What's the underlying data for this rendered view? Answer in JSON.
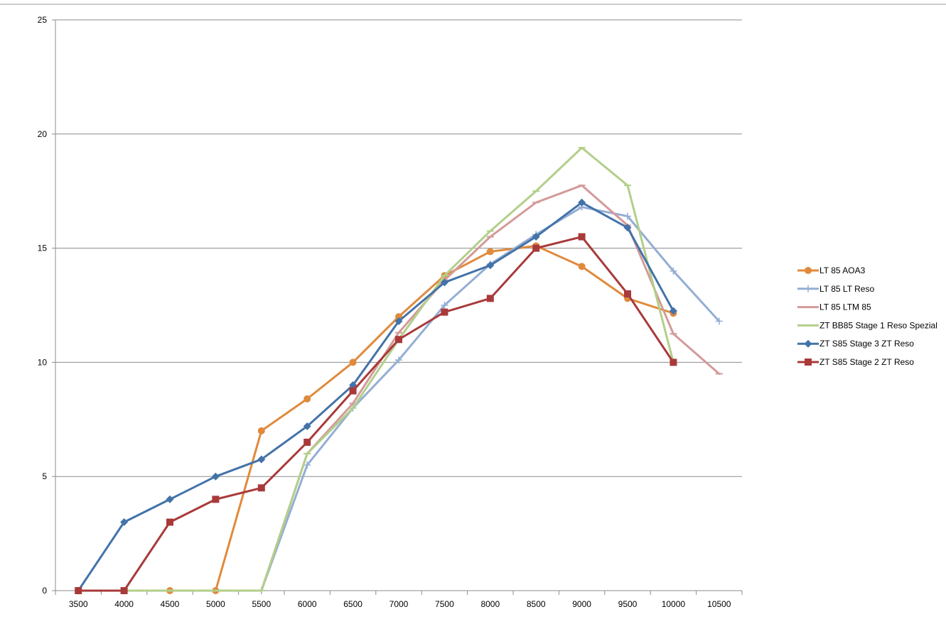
{
  "chart_data": {
    "type": "line",
    "title": "",
    "xlabel": "",
    "ylabel": "",
    "ylim": [
      0,
      25
    ],
    "yticks": [
      "0",
      "5",
      "10",
      "15",
      "20",
      "25"
    ],
    "categories": [
      "3500",
      "4000",
      "4500",
      "5000",
      "5500",
      "6000",
      "6500",
      "7000",
      "7500",
      "8000",
      "8500",
      "9000",
      "9500",
      "10000",
      "10500"
    ],
    "grid": "horizontal",
    "legend_position": "right",
    "series": [
      {
        "name": "LT 85 AOA3",
        "color": "#e08a3c",
        "marker": "circle",
        "values": [
          null,
          null,
          0,
          0,
          7,
          8.4,
          10,
          12,
          13.8,
          14.85,
          15.1,
          14.2,
          12.8,
          12.15,
          null
        ]
      },
      {
        "name": "LT 85 LT Reso",
        "color": "#94aed4",
        "marker": "plus",
        "values": [
          null,
          null,
          null,
          null,
          0,
          5.5,
          8,
          10.1,
          12.5,
          14.3,
          15.6,
          16.8,
          16.4,
          14,
          11.8
        ]
      },
      {
        "name": "LT 85 LTM 85",
        "color": "#d49a9a",
        "marker": "dash",
        "values": [
          null,
          null,
          null,
          null,
          0,
          6,
          8.2,
          11.3,
          13.6,
          15.5,
          17,
          17.75,
          16,
          11.25,
          9.5
        ]
      },
      {
        "name": "ZT BB85 Stage 1 Reso Spezial",
        "color": "#b2cf8a",
        "marker": "dash",
        "values": [
          null,
          0,
          0,
          0,
          0,
          6,
          8,
          11,
          13.8,
          15.75,
          17.5,
          19.4,
          17.75,
          10,
          null
        ]
      },
      {
        "name": "ZT S85 Stage 3 ZT Reso",
        "color": "#4373a8",
        "marker": "diamond",
        "values": [
          0,
          3,
          4,
          5,
          5.75,
          7.2,
          9,
          11.8,
          13.5,
          14.25,
          15.5,
          17,
          15.9,
          12.25,
          null
        ]
      },
      {
        "name": "ZT S85 Stage 2 ZT Reso",
        "color": "#a83a3a",
        "marker": "square",
        "values": [
          0,
          0,
          3,
          4,
          4.5,
          6.5,
          8.75,
          11,
          12.2,
          12.8,
          15,
          15.5,
          13,
          10,
          null
        ]
      }
    ]
  }
}
